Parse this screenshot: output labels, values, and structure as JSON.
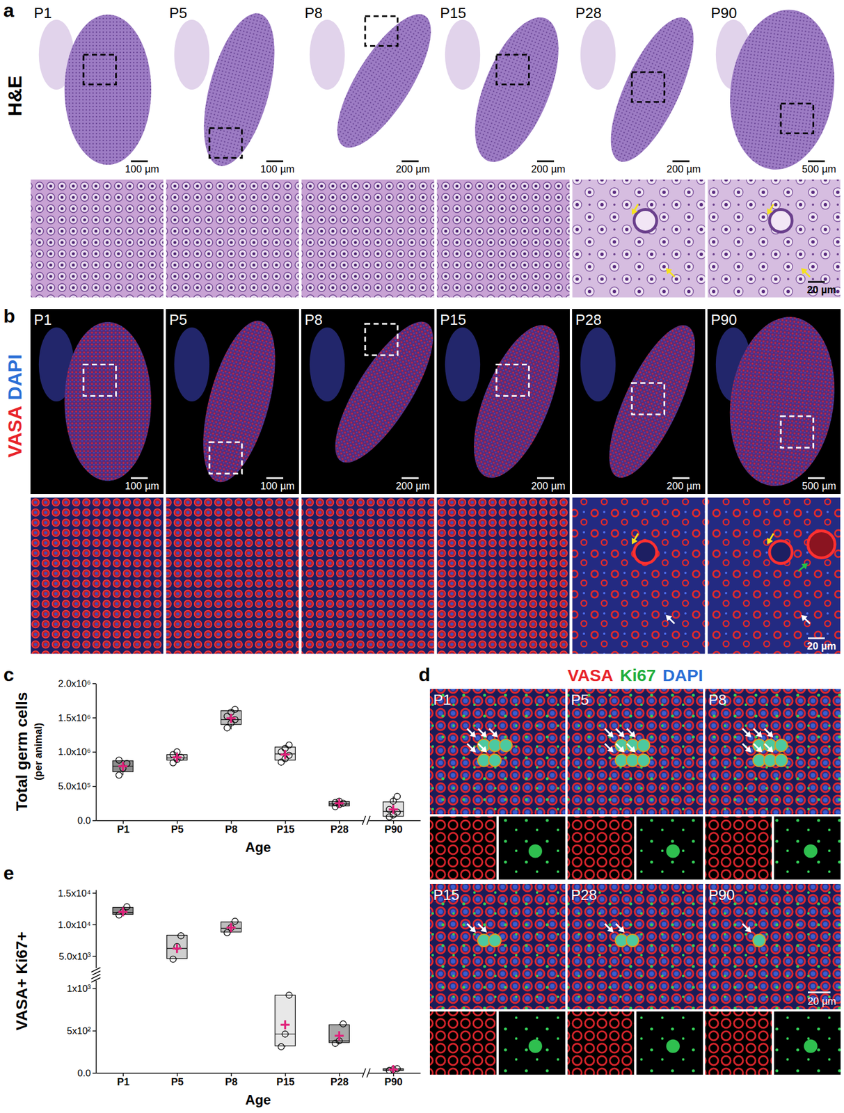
{
  "figure": {
    "panel_labels": [
      "a",
      "b",
      "c",
      "d",
      "e"
    ],
    "a": {
      "row_label": "H&E",
      "stages": [
        "P1",
        "P5",
        "P8",
        "P15",
        "P28",
        "P90"
      ],
      "scale_bars": [
        "100 µm",
        "100 µm",
        "200 µm",
        "200 µm",
        "200 µm",
        "500 µm"
      ],
      "zoom_scale_bar": "20 µm"
    },
    "b": {
      "row_label": [
        {
          "text": "VASA",
          "color": "#e8232a"
        },
        {
          "text": "DAPI",
          "color": "#2b6fd6"
        }
      ],
      "stages": [
        "P1",
        "P5",
        "P8",
        "P15",
        "P28",
        "P90"
      ],
      "scale_bars": [
        "100 µm",
        "100 µm",
        "200 µm",
        "200 µm",
        "200 µm",
        "500 µm"
      ],
      "zoom_scale_bar": "20 µm"
    },
    "d": {
      "title": [
        {
          "text": "VASA",
          "color": "#e8232a"
        },
        {
          "text": "Ki67",
          "color": "#1fae3c"
        },
        {
          "text": "DAPI",
          "color": "#2b6fd6"
        }
      ],
      "stages": [
        "P1",
        "P5",
        "P8",
        "P15",
        "P28",
        "P90"
      ],
      "scale_bar": "20 µm"
    }
  },
  "chart_data": [
    {
      "type": "box",
      "y_label": "Total germ cells",
      "y_sublabel": "(per animal)",
      "x_label": "Age",
      "categories": [
        "P1",
        "P5",
        "P8",
        "P15",
        "P28",
        "P90"
      ],
      "ylim": [
        0,
        2000000
      ],
      "yticks": [
        {
          "value": 0,
          "label": "0.0"
        },
        {
          "value": 500000,
          "label": "5.0x10⁵"
        },
        {
          "value": 1000000,
          "label": "1.0x10⁶"
        },
        {
          "value": 1500000,
          "label": "1.5x10⁶"
        },
        {
          "value": 2000000,
          "label": "2.0x10⁶"
        }
      ],
      "colors": [
        "#8c8c8c",
        "#d9d9d9",
        "#bfbfbf",
        "#e6e6e6",
        "#a6a6a6",
        "#e0e0e0"
      ],
      "boxes": [
        {
          "min": 660000,
          "q1": 710000,
          "median": 790000,
          "q3": 870000,
          "max": 880000,
          "mean": 790000,
          "points": [
            660000,
            760000,
            830000,
            880000
          ]
        },
        {
          "min": 840000,
          "q1": 880000,
          "median": 910000,
          "q3": 960000,
          "max": 1000000,
          "mean": 920000,
          "points": [
            840000,
            890000,
            920000,
            960000,
            1000000
          ]
        },
        {
          "min": 1330000,
          "q1": 1400000,
          "median": 1470000,
          "q3": 1600000,
          "max": 1620000,
          "mean": 1490000,
          "points": [
            1350000,
            1420000,
            1470000,
            1520000,
            1580000,
            1620000
          ]
        },
        {
          "min": 850000,
          "q1": 880000,
          "median": 970000,
          "q3": 1070000,
          "max": 1100000,
          "mean": 960000,
          "points": [
            850000,
            900000,
            950000,
            1000000,
            1050000,
            1100000
          ]
        },
        {
          "min": 200000,
          "q1": 210000,
          "median": 240000,
          "q3": 275000,
          "max": 290000,
          "mean": 250000,
          "points": [
            200000,
            230000,
            250000,
            260000,
            280000
          ]
        },
        {
          "min": 50000,
          "q1": 60000,
          "median": 130000,
          "q3": 270000,
          "max": 350000,
          "mean": 160000,
          "points": [
            50000,
            80000,
            120000,
            160000,
            280000,
            350000
          ]
        }
      ]
    },
    {
      "type": "box",
      "tick_labels": "y",
      "ylim": [
        3000,
        15500
      ],
      "yticks": [
        {
          "value": 5000,
          "label": "5.0x10³"
        },
        {
          "value": 10000,
          "label": "1.0x10⁴"
        },
        {
          "value": 15000,
          "label": "1.5x10⁴"
        }
      ],
      "colors": [
        "#8c8c8c",
        "#cfcfcf",
        "#bdbdbd",
        "#e8e8e8",
        "#a8a8a8",
        "#bdbdbd"
      ],
      "boxes": [
        {
          "min": 11500,
          "q1": 11600,
          "median": 11900,
          "q3": 12700,
          "max": 12800,
          "mean": 12000,
          "points": [
            11500,
            12000,
            12800
          ]
        },
        {
          "min": 4500,
          "q1": 4600,
          "median": 6200,
          "q3": 8300,
          "max": 8300,
          "mean": 6200,
          "points": [
            4500,
            6500,
            8200
          ]
        },
        {
          "min": 8700,
          "q1": 8800,
          "median": 9400,
          "q3": 10400,
          "max": 10500,
          "mean": 9500,
          "points": [
            8700,
            9500,
            10500
          ]
        },
        {
          "min": 310,
          "q1": 320,
          "median": 460,
          "q3": 920,
          "max": 920,
          "mean": 570,
          "points": [
            310,
            460,
            920
          ]
        },
        {
          "min": 350,
          "q1": 360,
          "median": 380,
          "q3": 570,
          "max": 580,
          "mean": 440,
          "points": [
            350,
            380,
            580
          ]
        },
        {
          "min": 30,
          "q1": 30,
          "median": 40,
          "q3": 50,
          "max": 50,
          "mean": 40,
          "points": [
            30,
            40,
            50
          ]
        }
      ]
    },
    {
      "type": "box",
      "y_label": "VASA+ Ki67+",
      "x_label": "Age",
      "categories": [
        "P1",
        "P5",
        "P8",
        "P15",
        "P28",
        "P90"
      ],
      "ylim": [
        0,
        1100
      ],
      "yticks": [
        {
          "value": 0,
          "label": "0.0"
        },
        {
          "value": 500,
          "label": "5x10²"
        },
        {
          "value": 1000,
          "label": "1x10³"
        }
      ],
      "colors": [
        "#8c8c8c",
        "#cfcfcf",
        "#bdbdbd",
        "#e8e8e8",
        "#a8a8a8",
        "#bdbdbd"
      ],
      "boxes": [
        {
          "min": 11500,
          "q1": 11600,
          "median": 11900,
          "q3": 12700,
          "max": 12800,
          "mean": 12000,
          "points": [
            11500,
            12000,
            12800
          ]
        },
        {
          "min": 4500,
          "q1": 4600,
          "median": 6200,
          "q3": 8300,
          "max": 8300,
          "mean": 6200,
          "points": [
            4500,
            6500,
            8200
          ]
        },
        {
          "min": 8700,
          "q1": 8800,
          "median": 9400,
          "q3": 10400,
          "max": 10500,
          "mean": 9500,
          "points": [
            8700,
            9500,
            10500
          ]
        },
        {
          "min": 310,
          "q1": 320,
          "median": 460,
          "q3": 920,
          "max": 920,
          "mean": 570,
          "points": [
            310,
            460,
            920
          ]
        },
        {
          "min": 350,
          "q1": 360,
          "median": 380,
          "q3": 570,
          "max": 580,
          "mean": 440,
          "points": [
            350,
            380,
            580
          ]
        },
        {
          "min": 30,
          "q1": 30,
          "median": 40,
          "q3": 50,
          "max": 50,
          "mean": 40,
          "points": [
            30,
            40,
            50
          ]
        }
      ]
    }
  ]
}
